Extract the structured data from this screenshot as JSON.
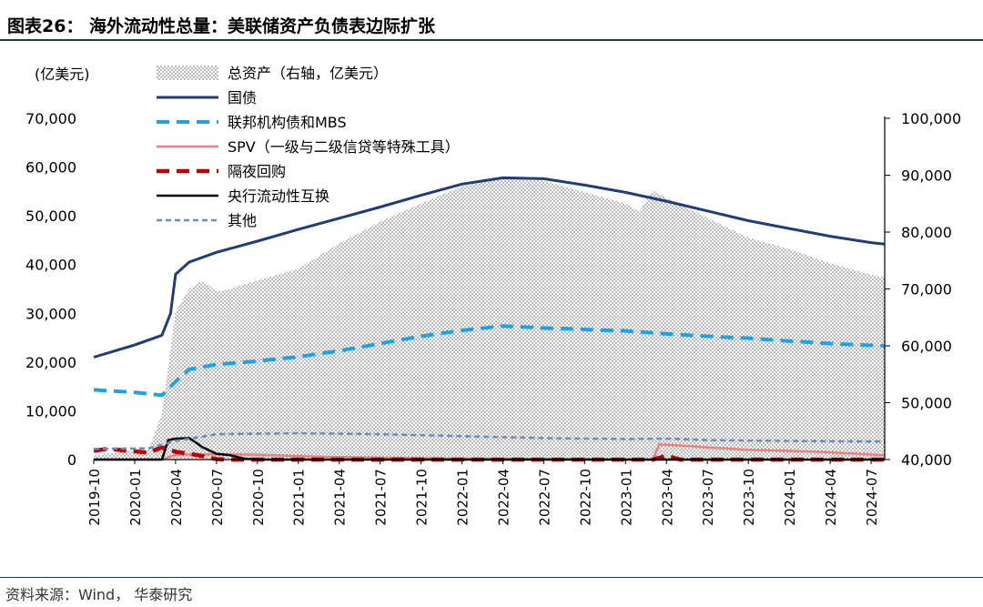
{
  "figure": {
    "title": "图表26： 海外流动性总量：美联储资产负债表边际扩张",
    "source": "资料来源：Wind， 华泰研究"
  },
  "colors": {
    "rule": "#1f3864",
    "total_assets": "#9a9a9a",
    "treasuries": "#1f3d7a",
    "agency_mbs": "#1aa3e8",
    "spv": "#f47c7c",
    "overnight_repo": "#c00000",
    "liquidity_swap": "#000000",
    "other": "#6a8bc4"
  },
  "chart_data": {
    "type": "line",
    "left_axis": {
      "unit_label": "(亿美元)",
      "ylim": [
        0,
        70000
      ],
      "ticks": [
        "0",
        "10,000",
        "20,000",
        "30,000",
        "40,000",
        "50,000",
        "60,000",
        "70,000"
      ]
    },
    "right_axis": {
      "ylim": [
        40000,
        100000
      ],
      "ticks": [
        "40,000",
        "50,000",
        "60,000",
        "70,000",
        "80,000",
        "90,000",
        "100,000"
      ]
    },
    "x_axis": {
      "range": [
        "2019-10",
        "2024-08"
      ],
      "tick_labels": [
        "2019-10",
        "2020-01",
        "2020-04",
        "2020-07",
        "2020-10",
        "2021-01",
        "2021-04",
        "2021-07",
        "2021-10",
        "2022-01",
        "2022-04",
        "2022-07",
        "2022-10",
        "2023-01",
        "2023-04",
        "2023-07",
        "2023-10",
        "2024-01",
        "2024-04",
        "2024-07"
      ]
    },
    "grid": false,
    "legend_position": "top-left",
    "series": [
      {
        "key": "total_assets",
        "name": "总资产（右轴，亿美元）",
        "axis": "right",
        "style": "dotted-area",
        "points": [
          [
            "2019-10",
            40700
          ],
          [
            "2020-01",
            41700
          ],
          [
            "2020-02",
            41600
          ],
          [
            "2020-03",
            48000
          ],
          [
            "2020-04",
            66000
          ],
          [
            "2020-05",
            70000
          ],
          [
            "2020-06",
            71500
          ],
          [
            "2020-07",
            69500
          ],
          [
            "2020-08",
            70000
          ],
          [
            "2020-10",
            71500
          ],
          [
            "2021-01",
            73500
          ],
          [
            "2021-04",
            78000
          ],
          [
            "2021-07",
            81800
          ],
          [
            "2021-10",
            85000
          ],
          [
            "2022-01",
            88000
          ],
          [
            "2022-04",
            89500
          ],
          [
            "2022-07",
            89000
          ],
          [
            "2022-10",
            87000
          ],
          [
            "2023-01",
            85000
          ],
          [
            "2023-02",
            83600
          ],
          [
            "2023-03",
            87300
          ],
          [
            "2023-04",
            86000
          ],
          [
            "2023-07",
            82500
          ],
          [
            "2023-10",
            79000
          ],
          [
            "2024-01",
            77000
          ],
          [
            "2024-04",
            74500
          ],
          [
            "2024-07",
            72500
          ],
          [
            "2024-08",
            72000
          ]
        ]
      },
      {
        "key": "treasuries",
        "name": "国债",
        "axis": "left",
        "style": "solid",
        "points": [
          [
            "2019-10",
            21000
          ],
          [
            "2020-01",
            23500
          ],
          [
            "2020-03",
            25500
          ],
          [
            "2020-03-20",
            30000
          ],
          [
            "2020-04",
            38000
          ],
          [
            "2020-05",
            40500
          ],
          [
            "2020-07",
            42500
          ],
          [
            "2020-10",
            44800
          ],
          [
            "2021-01",
            47200
          ],
          [
            "2021-04",
            49500
          ],
          [
            "2021-07",
            51800
          ],
          [
            "2021-10",
            54200
          ],
          [
            "2022-01",
            56500
          ],
          [
            "2022-04",
            57800
          ],
          [
            "2022-07",
            57600
          ],
          [
            "2022-10",
            56300
          ],
          [
            "2023-01",
            54800
          ],
          [
            "2023-04",
            53000
          ],
          [
            "2023-07",
            51000
          ],
          [
            "2023-10",
            49000
          ],
          [
            "2024-01",
            47400
          ],
          [
            "2024-04",
            45800
          ],
          [
            "2024-07",
            44500
          ],
          [
            "2024-08",
            44200
          ]
        ]
      },
      {
        "key": "agency_mbs",
        "name": "联邦机构债和MBS",
        "axis": "left",
        "style": "dashed",
        "points": [
          [
            "2019-10",
            14300
          ],
          [
            "2020-01",
            13800
          ],
          [
            "2020-03",
            13200
          ],
          [
            "2020-04",
            16000
          ],
          [
            "2020-05",
            18500
          ],
          [
            "2020-07",
            19500
          ],
          [
            "2020-10",
            20200
          ],
          [
            "2021-01",
            21100
          ],
          [
            "2021-04",
            22300
          ],
          [
            "2021-07",
            23800
          ],
          [
            "2021-10",
            25300
          ],
          [
            "2022-01",
            26500
          ],
          [
            "2022-04",
            27400
          ],
          [
            "2022-07",
            27000
          ],
          [
            "2022-10",
            26700
          ],
          [
            "2023-01",
            26400
          ],
          [
            "2023-04",
            25800
          ],
          [
            "2023-07",
            25300
          ],
          [
            "2023-10",
            24900
          ],
          [
            "2024-01",
            24300
          ],
          [
            "2024-04",
            23800
          ],
          [
            "2024-08",
            23300
          ]
        ]
      },
      {
        "key": "spv",
        "name": "SPV（一级与二级信贷等特殊工具）",
        "axis": "left",
        "style": "solid",
        "points": [
          [
            "2019-10",
            0
          ],
          [
            "2020-03",
            0
          ],
          [
            "2020-04",
            1000
          ],
          [
            "2020-07",
            1100
          ],
          [
            "2020-10",
            1000
          ],
          [
            "2021-01",
            700
          ],
          [
            "2021-04",
            500
          ],
          [
            "2021-07",
            400
          ],
          [
            "2021-10",
            300
          ],
          [
            "2022-01",
            200
          ],
          [
            "2022-10",
            100
          ],
          [
            "2023-03",
            0
          ],
          [
            "2023-03-15",
            3100
          ],
          [
            "2023-05",
            2900
          ],
          [
            "2023-07",
            2500
          ],
          [
            "2023-10",
            2000
          ],
          [
            "2024-01",
            1800
          ],
          [
            "2024-04",
            1500
          ],
          [
            "2024-08",
            900
          ]
        ]
      },
      {
        "key": "overnight_repo",
        "name": "隔夜回购",
        "axis": "left",
        "style": "dashed",
        "points": [
          [
            "2019-10",
            1800
          ],
          [
            "2019-11",
            2200
          ],
          [
            "2020-01",
            1700
          ],
          [
            "2020-02",
            1400
          ],
          [
            "2020-03",
            2500
          ],
          [
            "2020-04",
            1600
          ],
          [
            "2020-05",
            1200
          ],
          [
            "2020-06",
            700
          ],
          [
            "2020-07",
            100
          ],
          [
            "2020-08",
            0
          ],
          [
            "2023-03",
            0
          ],
          [
            "2023-04",
            800
          ],
          [
            "2023-05",
            0
          ],
          [
            "2024-08",
            0
          ]
        ]
      },
      {
        "key": "liquidity_swap",
        "name": "央行流动性互换",
        "axis": "left",
        "style": "solid",
        "points": [
          [
            "2019-10",
            0
          ],
          [
            "2020-03",
            0
          ],
          [
            "2020-03-15",
            4000
          ],
          [
            "2020-04",
            4300
          ],
          [
            "2020-05",
            4400
          ],
          [
            "2020-06",
            2500
          ],
          [
            "2020-07",
            1200
          ],
          [
            "2020-08",
            900
          ],
          [
            "2020-09",
            200
          ],
          [
            "2020-10",
            0
          ],
          [
            "2024-08",
            0
          ]
        ]
      },
      {
        "key": "other",
        "name": "其他",
        "axis": "left",
        "style": "dotted",
        "points": [
          [
            "2019-10",
            2200
          ],
          [
            "2020-02",
            2300
          ],
          [
            "2020-04",
            3800
          ],
          [
            "2020-07",
            5200
          ],
          [
            "2021-01",
            5400
          ],
          [
            "2021-07",
            5200
          ],
          [
            "2022-01",
            4800
          ],
          [
            "2022-07",
            4400
          ],
          [
            "2023-01",
            4200
          ],
          [
            "2023-04",
            4300
          ],
          [
            "2023-07",
            4000
          ],
          [
            "2024-01",
            3800
          ],
          [
            "2024-08",
            3700
          ]
        ]
      }
    ]
  }
}
